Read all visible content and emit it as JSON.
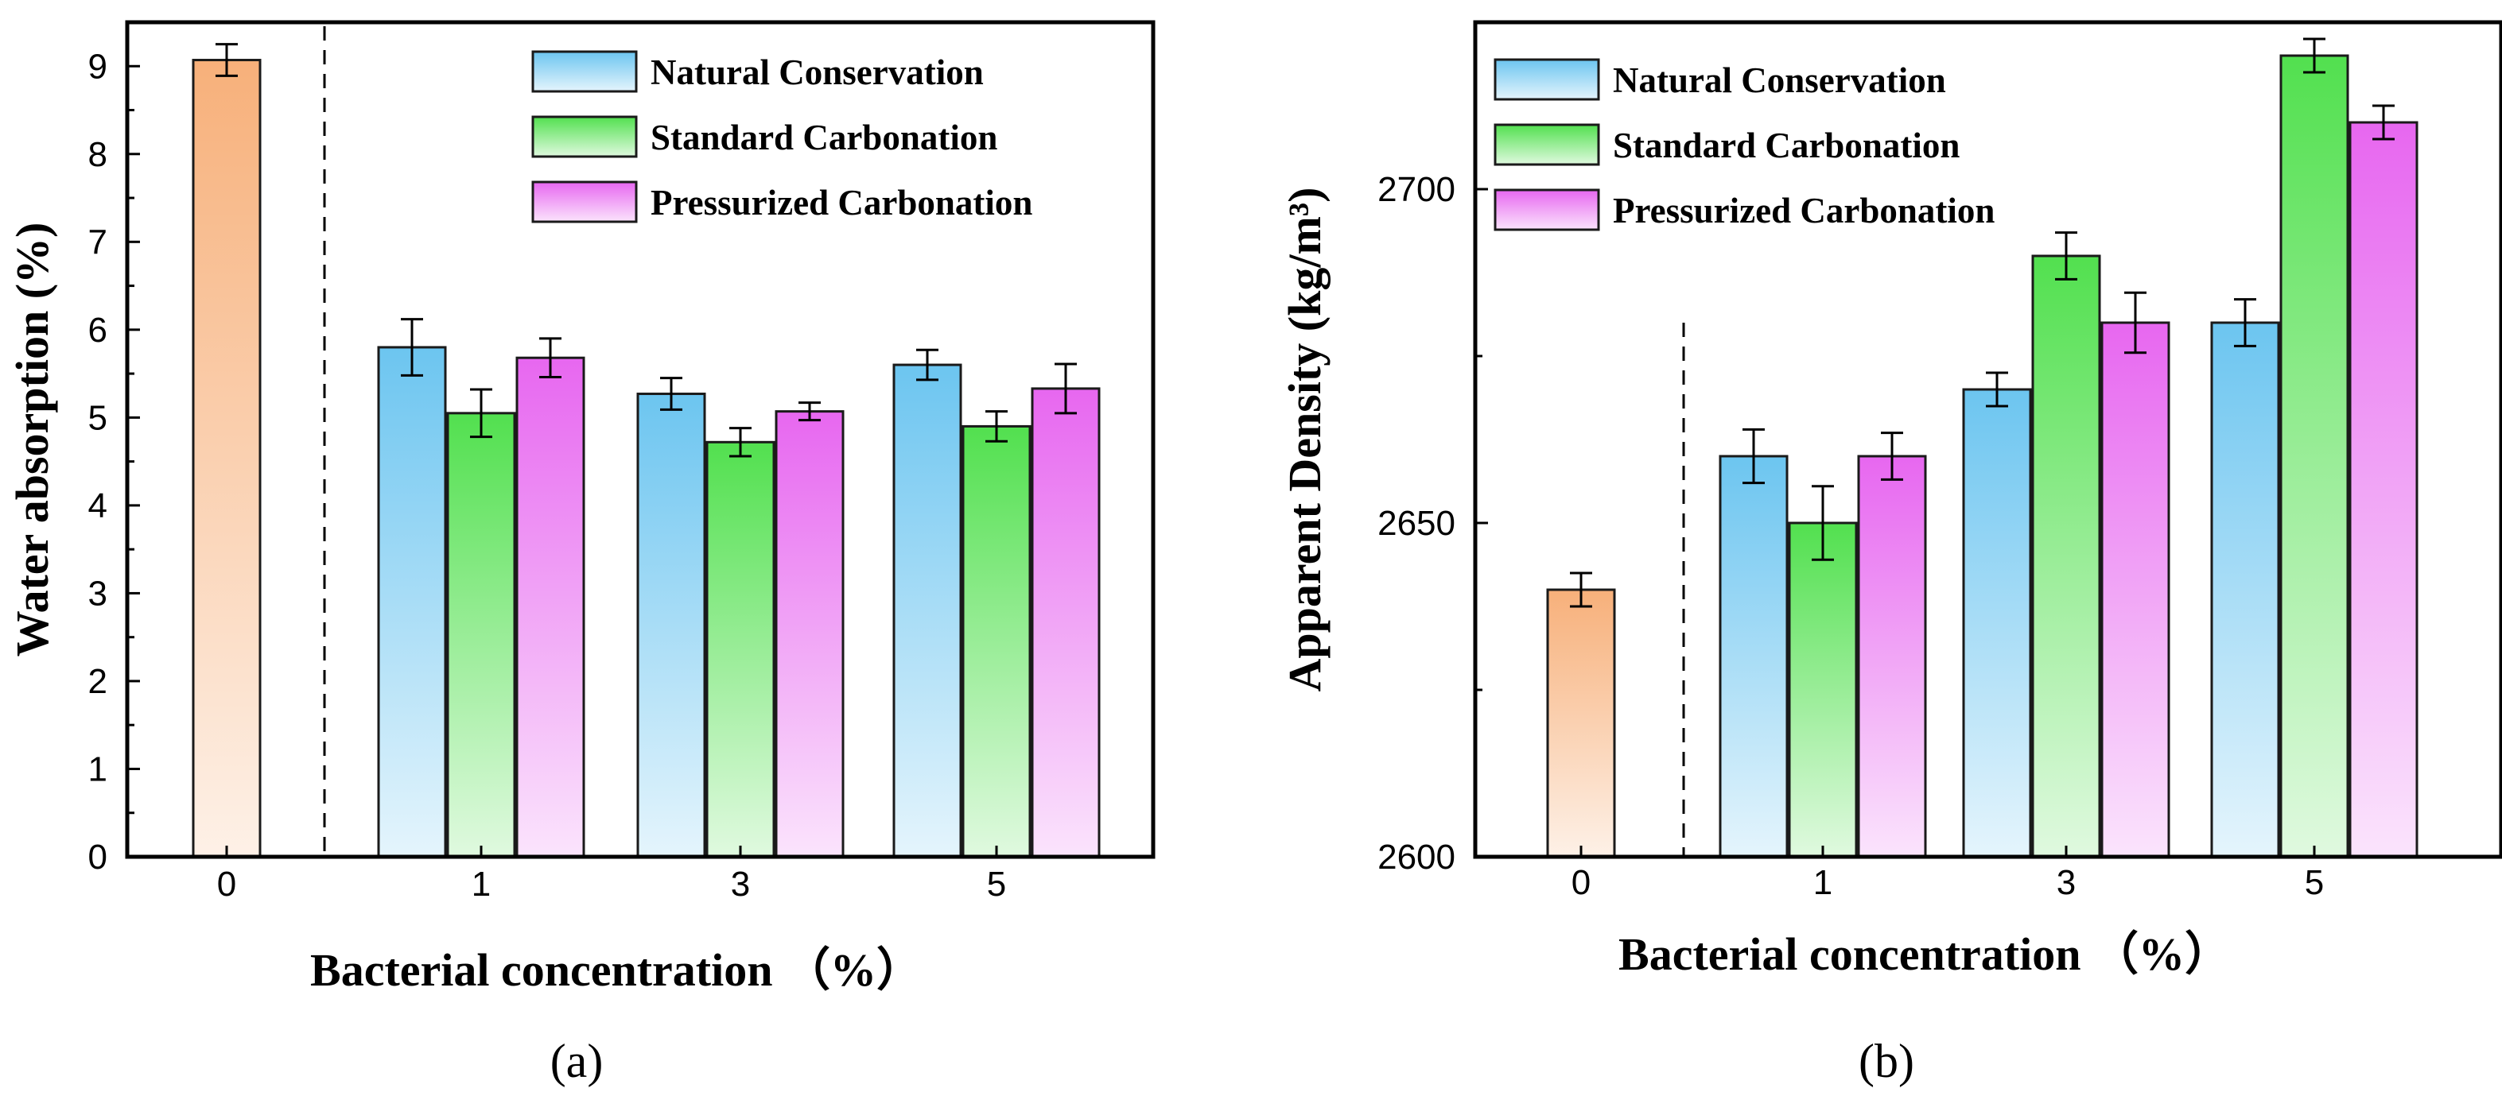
{
  "chart_data": [
    {
      "type": "bar",
      "panel_label": "(a)",
      "xlabel": "Bacterial concentration （%）",
      "ylabel": "Water absorption (%)",
      "ylim": [
        0,
        9.5
      ],
      "yticks": [
        0,
        1,
        2,
        3,
        4,
        5,
        6,
        7,
        8,
        9
      ],
      "grid": false,
      "legend_position": "top-right",
      "control": {
        "category": "0",
        "value": 9.07,
        "error": 0.18,
        "color": "#f7b07a"
      },
      "categories": [
        "1",
        "3",
        "5"
      ],
      "series": [
        {
          "name": "Natural Conservation",
          "color": "#6cc5f0",
          "values": [
            5.8,
            5.27,
            5.6
          ],
          "errors": [
            0.32,
            0.18,
            0.17
          ]
        },
        {
          "name": "Standard Carbonation",
          "color": "#52e04f",
          "values": [
            5.05,
            4.72,
            4.9
          ],
          "errors": [
            0.27,
            0.16,
            0.17
          ]
        },
        {
          "name": "Pressurized Carbonation",
          "color": "#e767f0",
          "values": [
            5.68,
            5.07,
            5.33
          ],
          "errors": [
            0.22,
            0.1,
            0.28
          ]
        }
      ]
    },
    {
      "type": "bar",
      "panel_label": "(b)",
      "xlabel": "Bacterial concentration （%）",
      "ylabel": "Apparent Density (kg/m³)",
      "ylim": [
        2600,
        2725
      ],
      "yticks": [
        2600,
        2650,
        2700
      ],
      "grid": false,
      "legend_position": "top-left",
      "control": {
        "category": "0",
        "value": 2640,
        "error": 2.5,
        "color": "#f7b07a"
      },
      "categories": [
        "1",
        "3",
        "5"
      ],
      "series": [
        {
          "name": "Natural Conservation",
          "color": "#6cc5f0",
          "values": [
            2660,
            2670,
            2680
          ],
          "errors": [
            4,
            2.5,
            3.5
          ]
        },
        {
          "name": "Standard Carbonation",
          "color": "#52e04f",
          "values": [
            2650,
            2690,
            2720
          ],
          "errors": [
            5.5,
            3.5,
            2.5
          ]
        },
        {
          "name": "Pressurized Carbonation",
          "color": "#e767f0",
          "values": [
            2660,
            2680,
            2710
          ],
          "errors": [
            3.5,
            4.5,
            2.5
          ]
        }
      ]
    }
  ]
}
